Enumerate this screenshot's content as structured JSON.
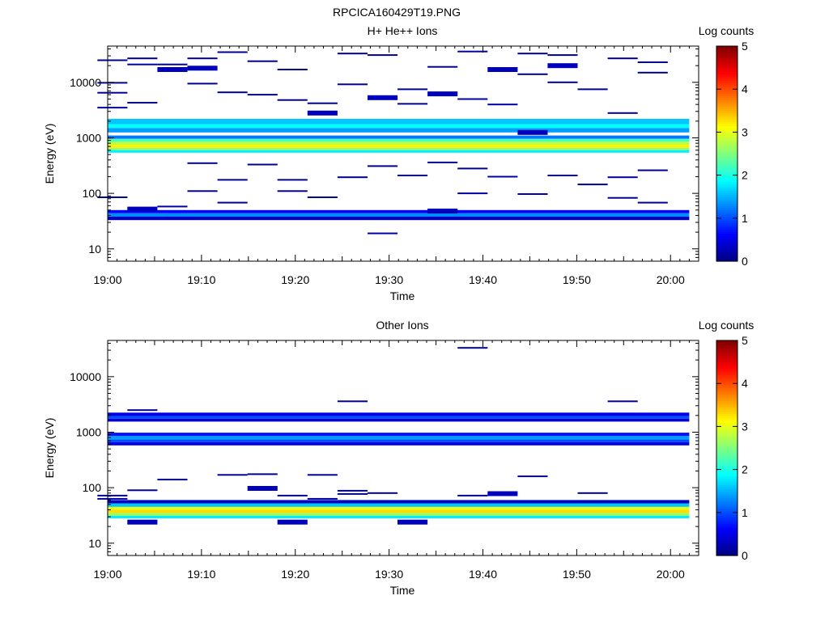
{
  "figure_title": "RPCICA160429T19.PNG",
  "colormap": [
    "#00007f",
    "#0000ff",
    "#007fff",
    "#00ffff",
    "#7fff7f",
    "#ffff00",
    "#ff7f00",
    "#ff0000",
    "#7f0000"
  ],
  "chart_data": [
    {
      "type": "heatmap",
      "title": "H+ He++ Ions",
      "xlabel": "Time",
      "ylabel": "Energy (eV)",
      "xlim": [
        "19:00",
        "20:03"
      ],
      "xticks": [
        "19:00",
        "19:10",
        "19:20",
        "19:30",
        "19:40",
        "19:50",
        "20:00"
      ],
      "ylim": [
        6,
        45000
      ],
      "yscale": "log",
      "yticks": [
        "10",
        "100",
        "1000",
        "10000"
      ],
      "colorbar": {
        "label": "Log counts",
        "range": [
          0,
          5
        ],
        "ticks": [
          "0",
          "1",
          "2",
          "3",
          "4",
          "5"
        ]
      },
      "bands": [
        {
          "e_low": 1750,
          "e_high": 2200,
          "level": 1.6
        },
        {
          "e_low": 1500,
          "e_high": 1750,
          "level": 1.9
        },
        {
          "e_low": 1250,
          "e_high": 1500,
          "level": 1.4
        },
        {
          "e_low": 960,
          "e_high": 1100,
          "level": 1.2
        },
        {
          "e_low": 850,
          "e_high": 960,
          "level": 2.2
        },
        {
          "e_low": 750,
          "e_high": 850,
          "level": 2.8
        },
        {
          "e_low": 660,
          "e_high": 750,
          "level": 3.2
        },
        {
          "e_low": 600,
          "e_high": 660,
          "level": 2.6
        },
        {
          "e_low": 540,
          "e_high": 600,
          "level": 1.8
        },
        {
          "e_low": 44,
          "e_high": 50,
          "level": 0.6
        },
        {
          "e_low": 38,
          "e_high": 44,
          "level": 1.3
        },
        {
          "e_low": 33,
          "e_high": 38,
          "level": 0.3
        }
      ],
      "speckles": [
        {
          "t": 0.5,
          "e": 25000,
          "level": 0.1
        },
        {
          "t": 0.5,
          "e": 9800,
          "level": 0.1
        },
        {
          "t": 0.5,
          "e": 6500,
          "level": 0.1
        },
        {
          "t": 0.5,
          "e": 3500,
          "level": 0.2
        },
        {
          "t": 0.5,
          "e": 85,
          "level": 0.1
        },
        {
          "t": 3.7,
          "e": 27000,
          "level": 0.1
        },
        {
          "t": 3.7,
          "e": 21000,
          "level": 0.2
        },
        {
          "t": 3.7,
          "e": 4300,
          "level": 0.1
        },
        {
          "t": 3.7,
          "e": 52,
          "level": 0.3
        },
        {
          "t": 6.9,
          "e": 21000,
          "level": 0.1
        },
        {
          "t": 6.9,
          "e": 17000,
          "level": 0.3
        },
        {
          "t": 6.9,
          "e": 58,
          "level": 0.2
        },
        {
          "t": 10.1,
          "e": 27000,
          "level": 0.1
        },
        {
          "t": 10.1,
          "e": 18000,
          "level": 0.3
        },
        {
          "t": 10.1,
          "e": 9500,
          "level": 0.1
        },
        {
          "t": 10.1,
          "e": 350,
          "level": 0.2
        },
        {
          "t": 10.1,
          "e": 110,
          "level": 0.1
        },
        {
          "t": 13.3,
          "e": 35000,
          "level": 0.1
        },
        {
          "t": 13.3,
          "e": 6600,
          "level": 0.1
        },
        {
          "t": 13.3,
          "e": 175,
          "level": 0.1
        },
        {
          "t": 13.3,
          "e": 68,
          "level": 0.1
        },
        {
          "t": 16.5,
          "e": 24000,
          "level": 0.1
        },
        {
          "t": 16.5,
          "e": 6000,
          "level": 0.1
        },
        {
          "t": 16.5,
          "e": 330,
          "level": 0.1
        },
        {
          "t": 19.7,
          "e": 17000,
          "level": 0.1
        },
        {
          "t": 19.7,
          "e": 4800,
          "level": 0.1
        },
        {
          "t": 19.7,
          "e": 175,
          "level": 0.1
        },
        {
          "t": 19.7,
          "e": 110,
          "level": 0.1
        },
        {
          "t": 22.9,
          "e": 4200,
          "level": 0.1
        },
        {
          "t": 22.9,
          "e": 2800,
          "level": 0.3
        },
        {
          "t": 22.9,
          "e": 85,
          "level": 0.1
        },
        {
          "t": 26.1,
          "e": 33000,
          "level": 0.1
        },
        {
          "t": 26.1,
          "e": 9200,
          "level": 0.1
        },
        {
          "t": 26.1,
          "e": 195,
          "level": 0.1
        },
        {
          "t": 29.3,
          "e": 31000,
          "level": 0.1
        },
        {
          "t": 29.3,
          "e": 5300,
          "level": 0.3
        },
        {
          "t": 29.3,
          "e": 310,
          "level": 0.1
        },
        {
          "t": 29.3,
          "e": 19,
          "level": 0.2
        },
        {
          "t": 32.5,
          "e": 7500,
          "level": 0.1
        },
        {
          "t": 32.5,
          "e": 4100,
          "level": 0.1
        },
        {
          "t": 32.5,
          "e": 210,
          "level": 0.1
        },
        {
          "t": 35.7,
          "e": 19000,
          "level": 0.1
        },
        {
          "t": 35.7,
          "e": 6200,
          "level": 0.3
        },
        {
          "t": 35.7,
          "e": 360,
          "level": 0.1
        },
        {
          "t": 35.7,
          "e": 48,
          "level": 0.3
        },
        {
          "t": 38.9,
          "e": 36000,
          "level": 0.2
        },
        {
          "t": 38.9,
          "e": 5000,
          "level": 0.2
        },
        {
          "t": 38.9,
          "e": 280,
          "level": 0.1
        },
        {
          "t": 38.9,
          "e": 100,
          "level": 0.2
        },
        {
          "t": 42.1,
          "e": 17000,
          "level": 0.3
        },
        {
          "t": 42.1,
          "e": 4000,
          "level": 0.2
        },
        {
          "t": 42.1,
          "e": 200,
          "level": 0.2
        },
        {
          "t": 45.3,
          "e": 33000,
          "level": 0.1
        },
        {
          "t": 45.3,
          "e": 14000,
          "level": 0.1
        },
        {
          "t": 45.3,
          "e": 1250,
          "level": 0.3
        },
        {
          "t": 45.3,
          "e": 97,
          "level": 0.2
        },
        {
          "t": 48.5,
          "e": 31000,
          "level": 0.1
        },
        {
          "t": 48.5,
          "e": 20000,
          "level": 0.3
        },
        {
          "t": 48.5,
          "e": 10000,
          "level": 0.1
        },
        {
          "t": 48.5,
          "e": 210,
          "level": 0.1
        },
        {
          "t": 51.7,
          "e": 7500,
          "level": 0.1
        },
        {
          "t": 51.7,
          "e": 145,
          "level": 0.1
        },
        {
          "t": 54.9,
          "e": 27000,
          "level": 0.1
        },
        {
          "t": 54.9,
          "e": 2800,
          "level": 0.1
        },
        {
          "t": 54.9,
          "e": 195,
          "level": 0.2
        },
        {
          "t": 54.9,
          "e": 83,
          "level": 0.1
        },
        {
          "t": 58.1,
          "e": 23000,
          "level": 0.1
        },
        {
          "t": 58.1,
          "e": 15000,
          "level": 0.1
        },
        {
          "t": 58.1,
          "e": 260,
          "level": 0.1
        },
        {
          "t": 58.1,
          "e": 68,
          "level": 0.1
        }
      ]
    },
    {
      "type": "heatmap",
      "title": "Other Ions",
      "xlabel": "Time",
      "ylabel": "Energy (eV)",
      "xlim": [
        "19:00",
        "20:03"
      ],
      "xticks": [
        "19:00",
        "19:10",
        "19:20",
        "19:30",
        "19:40",
        "19:50",
        "20:00"
      ],
      "ylim": [
        6,
        45000
      ],
      "yscale": "log",
      "yticks": [
        "10",
        "100",
        "1000",
        "10000"
      ],
      "colorbar": {
        "label": "Log counts",
        "range": [
          0,
          5
        ],
        "ticks": [
          "0",
          "1",
          "2",
          "3",
          "4",
          "5"
        ]
      },
      "bands": [
        {
          "e_low": 1950,
          "e_high": 2250,
          "level": 0.5
        },
        {
          "e_low": 1750,
          "e_high": 1950,
          "level": 1.0
        },
        {
          "e_low": 1550,
          "e_high": 1750,
          "level": 0.4
        },
        {
          "e_low": 850,
          "e_high": 980,
          "level": 0.7
        },
        {
          "e_low": 740,
          "e_high": 850,
          "level": 1.4
        },
        {
          "e_low": 660,
          "e_high": 740,
          "level": 1.0
        },
        {
          "e_low": 580,
          "e_high": 660,
          "level": 0.5
        },
        {
          "e_low": 52,
          "e_high": 60,
          "level": 0.3
        },
        {
          "e_low": 45,
          "e_high": 52,
          "level": 1.6
        },
        {
          "e_low": 40,
          "e_high": 45,
          "level": 3.0
        },
        {
          "e_low": 35,
          "e_high": 40,
          "level": 3.3
        },
        {
          "e_low": 31,
          "e_high": 35,
          "level": 2.6
        },
        {
          "e_low": 28,
          "e_high": 31,
          "level": 1.8
        }
      ],
      "speckles": [
        {
          "t": 0.5,
          "e": 72,
          "level": 0.1
        },
        {
          "t": 0.5,
          "e": 63,
          "level": 0.2
        },
        {
          "t": 3.7,
          "e": 2500,
          "level": 0.1
        },
        {
          "t": 3.7,
          "e": 90,
          "level": 0.1
        },
        {
          "t": 3.7,
          "e": 24,
          "level": 0.3
        },
        {
          "t": 6.9,
          "e": 140,
          "level": 0.1
        },
        {
          "t": 13.3,
          "e": 170,
          "level": 0.1
        },
        {
          "t": 16.5,
          "e": 175,
          "level": 0.1
        },
        {
          "t": 16.5,
          "e": 97,
          "level": 0.3
        },
        {
          "t": 19.7,
          "e": 72,
          "level": 0.1
        },
        {
          "t": 19.7,
          "e": 24,
          "level": 0.3
        },
        {
          "t": 22.9,
          "e": 170,
          "level": 0.1
        },
        {
          "t": 22.9,
          "e": 63,
          "level": 0.1
        },
        {
          "t": 26.1,
          "e": 3600,
          "level": 0.1
        },
        {
          "t": 26.1,
          "e": 88,
          "level": 0.1
        },
        {
          "t": 26.1,
          "e": 77,
          "level": 0.1
        },
        {
          "t": 29.3,
          "e": 80,
          "level": 0.1
        },
        {
          "t": 32.5,
          "e": 24,
          "level": 0.3
        },
        {
          "t": 38.9,
          "e": 33000,
          "level": 0.2
        },
        {
          "t": 38.9,
          "e": 72,
          "level": 0.1
        },
        {
          "t": 42.1,
          "e": 78,
          "level": 0.3
        },
        {
          "t": 45.3,
          "e": 160,
          "level": 0.1
        },
        {
          "t": 51.7,
          "e": 80,
          "level": 0.1
        },
        {
          "t": 54.9,
          "e": 3600,
          "level": 0.1
        }
      ]
    }
  ]
}
